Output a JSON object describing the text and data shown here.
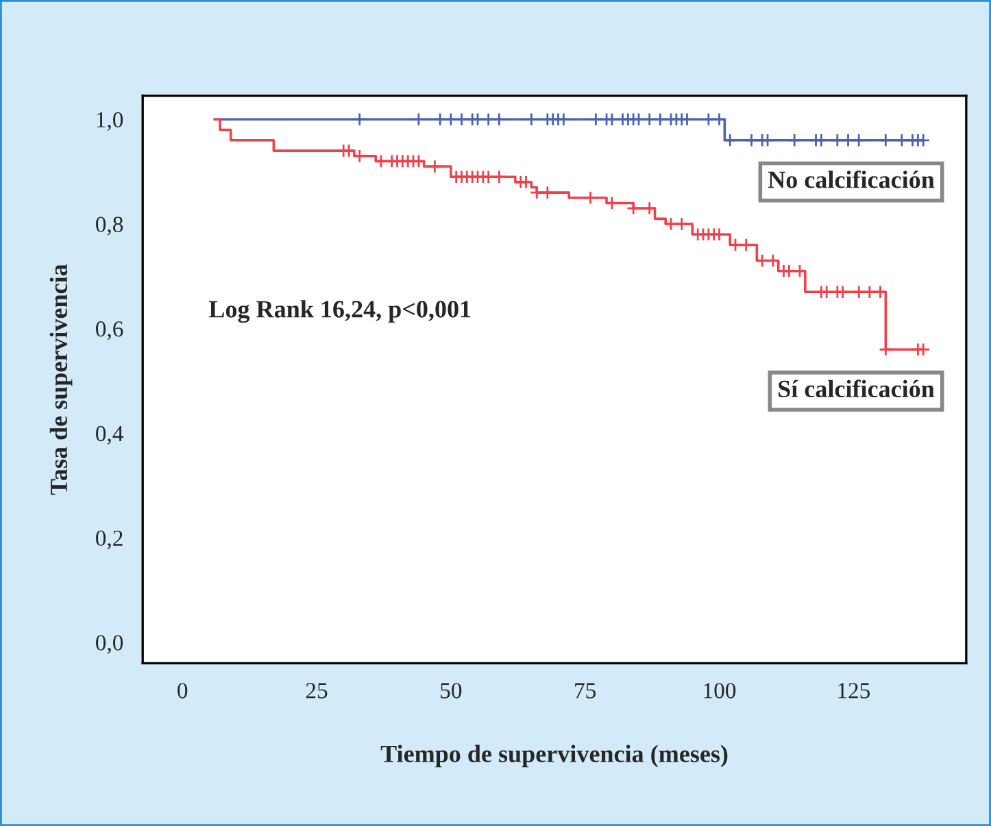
{
  "chart_data": {
    "type": "step",
    "xlabel": "Tiempo de supervivencia (meses)",
    "ylabel": "Tasa de supervivencia",
    "annotations": [
      "Log Rank 16,24, p<0,001"
    ],
    "xlim": [
      -7.4,
      146
    ],
    "ylim": [
      -0.04,
      1.045
    ],
    "xticks": [
      0,
      25,
      50,
      75,
      100,
      125
    ],
    "yticks": [
      {
        "value": 0,
        "label": "0,0"
      },
      {
        "value": 0.2,
        "label": "0,2"
      },
      {
        "value": 0.4,
        "label": "0,4"
      },
      {
        "value": 0.6,
        "label": "0,6"
      },
      {
        "value": 0.8,
        "label": "0,8"
      },
      {
        "value": 1.0,
        "label": "1,0"
      }
    ],
    "grid": false,
    "legend": false,
    "series": [
      {
        "name": "No calcificación",
        "color": "#4a62b0",
        "marker": "none",
        "x": [
          6,
          101,
          138
        ],
        "values": [
          1.0,
          0.96,
          0.96
        ]
      },
      {
        "name": "Sí calcificación",
        "color": "#f0404a",
        "marker": "none",
        "x": [
          6,
          7,
          9,
          17,
          32,
          36,
          45,
          50,
          62,
          65,
          66,
          72,
          79,
          84,
          88,
          90,
          95,
          102,
          107,
          111,
          116,
          131,
          138
        ],
        "values": [
          1.0,
          0.98,
          0.96,
          0.94,
          0.93,
          0.92,
          0.91,
          0.89,
          0.88,
          0.87,
          0.86,
          0.85,
          0.84,
          0.83,
          0.81,
          0.8,
          0.78,
          0.76,
          0.73,
          0.71,
          0.67,
          0.56,
          0.56
        ]
      },
      {
        "color": "#4a62b0",
        "type": "scatter",
        "marker": "cross",
        "x": [
          33,
          44,
          48,
          50,
          52,
          54,
          55,
          57,
          59,
          65,
          68,
          69,
          70,
          71,
          77,
          79,
          80,
          82,
          83,
          84,
          85,
          87,
          89,
          91,
          92,
          93,
          94,
          98,
          100,
          102,
          106,
          108,
          109,
          114,
          118,
          119,
          122,
          124,
          126,
          131,
          134,
          136,
          137,
          138
        ],
        "values": [
          1.0,
          1.0,
          1.0,
          1.0,
          1.0,
          1.0,
          1.0,
          1.0,
          1.0,
          1.0,
          1.0,
          1.0,
          1.0,
          1.0,
          1.0,
          1.0,
          1.0,
          1.0,
          1.0,
          1.0,
          1.0,
          1.0,
          1.0,
          1.0,
          1.0,
          1.0,
          1.0,
          1.0,
          1.0,
          0.96,
          0.96,
          0.96,
          0.96,
          0.96,
          0.96,
          0.96,
          0.96,
          0.96,
          0.96,
          0.96,
          0.96,
          0.96,
          0.96,
          0.96
        ]
      },
      {
        "color": "#f0404a",
        "type": "scatter",
        "marker": "cross",
        "x": [
          30,
          31,
          33,
          37,
          39,
          40,
          41,
          42,
          43,
          44,
          47,
          51,
          52,
          53,
          54,
          55,
          56,
          57,
          59,
          63,
          64,
          66,
          68,
          76,
          80,
          84,
          87,
          91,
          93,
          96,
          97,
          98,
          99,
          100,
          103,
          105,
          108,
          110,
          112,
          113,
          115,
          119,
          120,
          122,
          123,
          126,
          128,
          130,
          131,
          137,
          138
        ],
        "values": [
          0.94,
          0.94,
          0.93,
          0.92,
          0.92,
          0.92,
          0.92,
          0.92,
          0.92,
          0.92,
          0.91,
          0.89,
          0.89,
          0.89,
          0.89,
          0.89,
          0.89,
          0.89,
          0.89,
          0.88,
          0.88,
          0.86,
          0.86,
          0.85,
          0.84,
          0.83,
          0.83,
          0.8,
          0.8,
          0.78,
          0.78,
          0.78,
          0.78,
          0.78,
          0.76,
          0.76,
          0.73,
          0.73,
          0.71,
          0.71,
          0.71,
          0.67,
          0.67,
          0.67,
          0.67,
          0.67,
          0.67,
          0.67,
          0.56,
          0.56,
          0.56
        ]
      }
    ]
  }
}
